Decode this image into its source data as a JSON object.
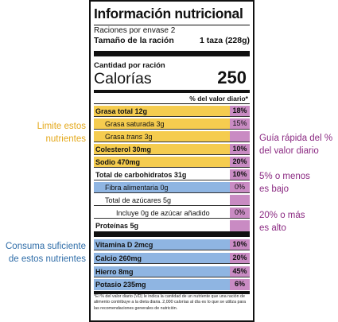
{
  "title": "Información nutricional",
  "servings": "Raciones por envase 2",
  "serving_size": {
    "label": "Tamaño de la ración",
    "value": "1 taza (228g)"
  },
  "amount_per_serving": "Cantidad por ración",
  "calories": {
    "label": "Calorías",
    "value": "250"
  },
  "dv_header": "% del valor diario*",
  "rows": [
    {
      "name": "Grasa total 12g",
      "pct": "18%"
    },
    {
      "name": "Grasa saturada 3g",
      "pct": "15%"
    },
    {
      "pre": "Grasa ",
      "ital": "trans",
      "post": " 3g",
      "pct": ""
    },
    {
      "name": "Colesterol 30mg",
      "pct": "10%"
    },
    {
      "name": "Sodio 470mg",
      "pct": "20%"
    },
    {
      "name": "Total de carbohidratos 31g",
      "pct": "10%"
    },
    {
      "name": "Fibra alimentaria 0g",
      "pct": "0%"
    },
    {
      "name": "Total de azúcares 5g",
      "pct": ""
    },
    {
      "name": "Incluye 0g de azúcar añadido",
      "pct": "0%"
    },
    {
      "name": "Proteínas 5g",
      "pct": ""
    },
    {
      "name": "Vitamina D 2mcg",
      "pct": "10%"
    },
    {
      "name": "Calcio 260mg",
      "pct": "20%"
    },
    {
      "name": "Hierro 8mg",
      "pct": "45%"
    },
    {
      "name": "Potasio 235mg",
      "pct": "6%"
    }
  ],
  "footnote": "*El % del valor diario (VD) le indica la cantidad de un nutriente que una ración de alimento contribuye a la dieta diaria. 2,000 calorías al día es lo que se utiliza para las recomendaciones generales de nutrición.",
  "annotations": {
    "limit": [
      "Limite estos",
      "nutrientes"
    ],
    "enough": [
      "Consuma suficiente",
      "de estos nutrientes"
    ],
    "guide": [
      "Guía rápida del %",
      "del valor diario"
    ],
    "low": [
      "5% o menos",
      "es bajo"
    ],
    "high": [
      "20% o más",
      "es alto"
    ]
  },
  "colors": {
    "limit": "#f5cc4f",
    "enough": "#8fb5e2",
    "dv_column": "#c98bc3",
    "limit_text": "#e4a81a",
    "enough_text": "#2f6da8",
    "guide_text": "#8b2a82"
  }
}
